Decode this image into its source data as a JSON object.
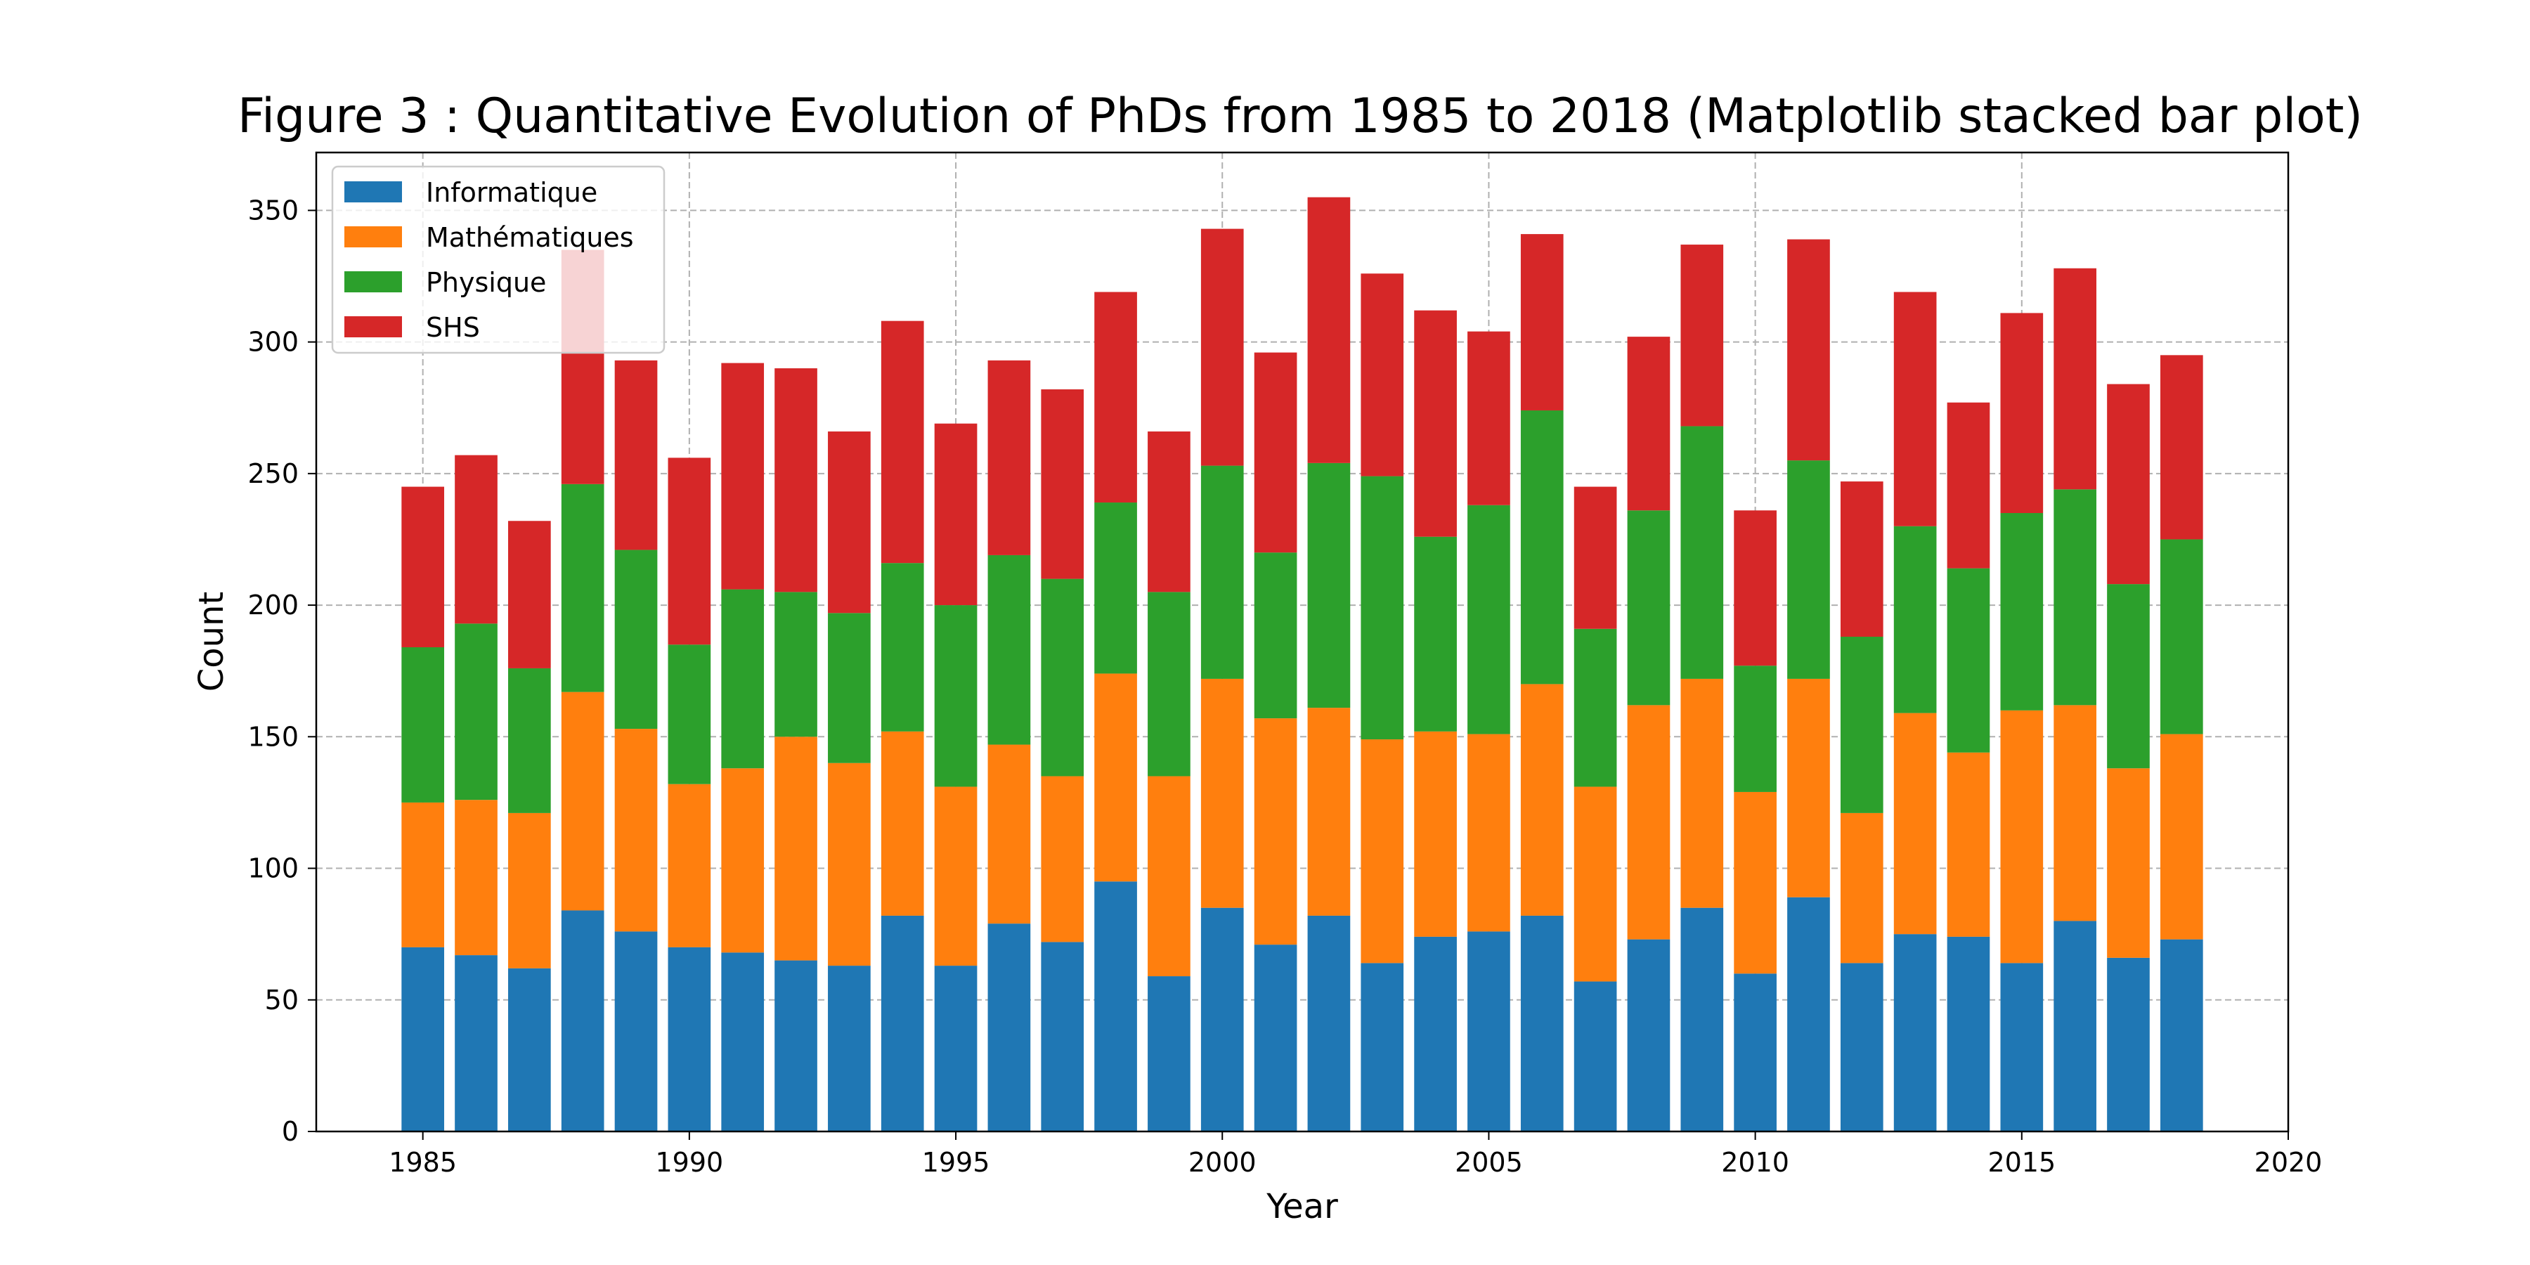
{
  "chart_data": {
    "type": "bar",
    "stacked": true,
    "title": "Figure 3 : Quantitative Evolution of PhDs from 1985 to 2018 (Matplotlib stacked bar plot)",
    "xlabel": "Year",
    "ylabel": "Count",
    "xlim": [
      1983,
      2020
    ],
    "ylim": [
      0,
      372
    ],
    "xticks": [
      1985,
      1990,
      1995,
      2000,
      2005,
      2010,
      2015,
      2020
    ],
    "yticks": [
      0,
      50,
      100,
      150,
      200,
      250,
      300,
      350
    ],
    "grid": true,
    "legend_position": "top-left",
    "x": [
      1985,
      1986,
      1987,
      1988,
      1989,
      1990,
      1991,
      1992,
      1993,
      1994,
      1995,
      1996,
      1997,
      1998,
      1999,
      2000,
      2001,
      2002,
      2003,
      2004,
      2005,
      2006,
      2007,
      2008,
      2009,
      2010,
      2011,
      2012,
      2013,
      2014,
      2015,
      2016,
      2017,
      2018
    ],
    "series": [
      {
        "name": "Informatique",
        "color": "#1f77b4",
        "values": [
          70,
          67,
          62,
          84,
          76,
          70,
          68,
          65,
          63,
          82,
          63,
          79,
          72,
          95,
          59,
          85,
          71,
          82,
          64,
          74,
          76,
          82,
          57,
          73,
          85,
          60,
          89,
          64,
          75,
          74,
          64,
          80,
          66,
          73
        ]
      },
      {
        "name": "Mathématiques",
        "color": "#ff7f0e",
        "values": [
          55,
          59,
          59,
          83,
          77,
          62,
          70,
          85,
          77,
          70,
          68,
          68,
          63,
          79,
          76,
          87,
          86,
          79,
          85,
          78,
          75,
          88,
          74,
          89,
          87,
          69,
          83,
          57,
          84,
          70,
          96,
          82,
          72,
          78
        ]
      },
      {
        "name": "Physique",
        "color": "#2ca02c",
        "values": [
          59,
          67,
          55,
          79,
          68,
          53,
          68,
          55,
          57,
          64,
          69,
          72,
          75,
          65,
          70,
          81,
          63,
          93,
          100,
          74,
          87,
          104,
          60,
          74,
          96,
          48,
          83,
          67,
          71,
          70,
          75,
          82,
          70,
          74
        ]
      },
      {
        "name": "SHS",
        "color": "#d62728",
        "values": [
          61,
          64,
          56,
          89,
          72,
          71,
          86,
          85,
          69,
          92,
          69,
          74,
          72,
          80,
          61,
          90,
          76,
          101,
          77,
          86,
          66,
          67,
          54,
          66,
          69,
          59,
          84,
          59,
          89,
          63,
          76,
          84,
          76,
          70
        ]
      }
    ]
  }
}
